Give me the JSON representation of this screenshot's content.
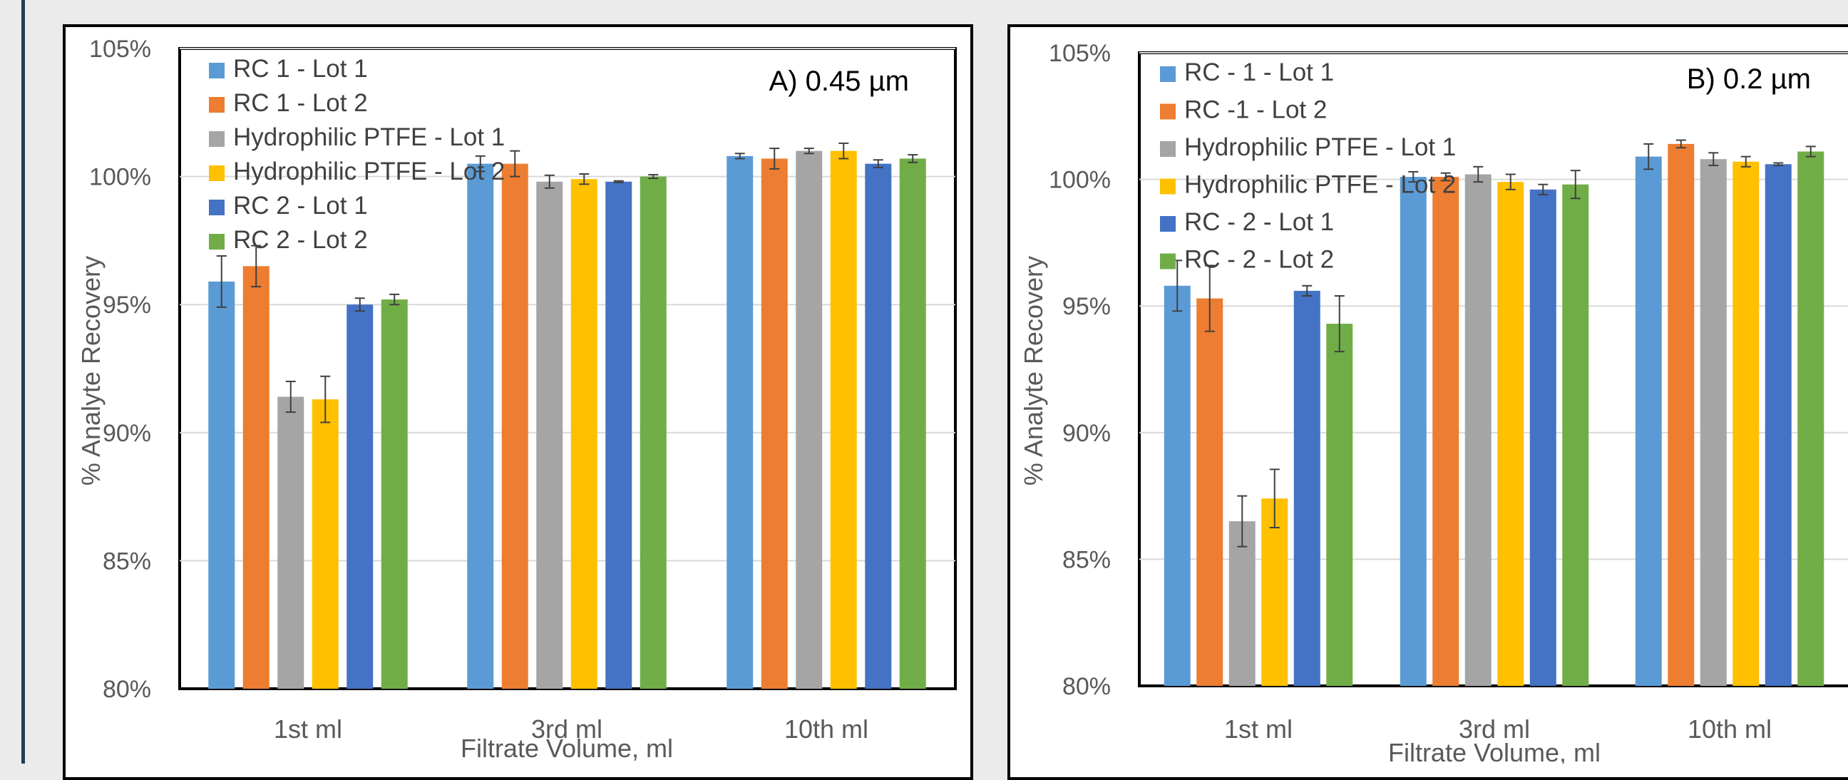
{
  "chart_data": [
    {
      "type": "bar",
      "title": "A) 0.45 µm",
      "xlabel": "Filtrate Volume, ml",
      "ylabel": "% Analyte Recovery",
      "ylim": [
        80,
        105
      ],
      "yticks": [
        "80%",
        "85%",
        "90%",
        "95%",
        "100%",
        "105%"
      ],
      "categories": [
        "1st ml",
        "3rd ml",
        "10th ml"
      ],
      "grid": true,
      "legend_position": "top-left",
      "series": [
        {
          "name": "RC 1 - Lot 1",
          "color": "#5b9bd5",
          "values": [
            95.9,
            100.5,
            100.8
          ],
          "errors": [
            1.0,
            0.3,
            0.1
          ]
        },
        {
          "name": "RC 1 - Lot 2",
          "color": "#ed7d31",
          "values": [
            96.5,
            100.5,
            100.7
          ],
          "errors": [
            0.8,
            0.5,
            0.4
          ]
        },
        {
          "name": "Hydrophilic PTFE - Lot 1",
          "color": "#a5a5a5",
          "values": [
            91.4,
            99.8,
            101.0
          ],
          "errors": [
            0.6,
            0.25,
            0.1
          ]
        },
        {
          "name": "Hydrophilic PTFE - Lot 2",
          "color": "#ffc000",
          "values": [
            91.3,
            99.9,
            101.0
          ],
          "errors": [
            0.9,
            0.2,
            0.3
          ]
        },
        {
          "name": "RC 2 - Lot 1",
          "color": "#4472c4",
          "values": [
            95.0,
            99.8,
            100.5
          ],
          "errors": [
            0.25,
            0.03,
            0.15
          ]
        },
        {
          "name": "RC 2 - Lot 2",
          "color": "#70ad47",
          "values": [
            95.2,
            100.0,
            100.7
          ],
          "errors": [
            0.2,
            0.07,
            0.15
          ]
        }
      ]
    },
    {
      "type": "bar",
      "title": "B) 0.2 µm",
      "xlabel": "Filtrate Volume, ml",
      "ylabel": "% Analyte Recovery",
      "ylim": [
        80,
        105
      ],
      "yticks": [
        "80%",
        "85%",
        "90%",
        "95%",
        "100%",
        "105%"
      ],
      "categories": [
        "1st ml",
        "3rd ml",
        "10th ml"
      ],
      "grid": true,
      "legend_position": "top-left",
      "series": [
        {
          "name": "RC - 1 - Lot 1",
          "color": "#5b9bd5",
          "values": [
            95.8,
            100.1,
            100.9
          ],
          "errors": [
            1.0,
            0.2,
            0.5
          ]
        },
        {
          "name": "RC -1 - Lot 2",
          "color": "#ed7d31",
          "values": [
            95.3,
            100.1,
            101.4
          ],
          "errors": [
            1.3,
            0.15,
            0.15
          ]
        },
        {
          "name": "Hydrophilic PTFE - Lot 1",
          "color": "#a5a5a5",
          "values": [
            86.5,
            100.2,
            100.8
          ],
          "errors": [
            1.0,
            0.3,
            0.25
          ]
        },
        {
          "name": "Hydrophilic PTFE - Lot 2",
          "color": "#ffc000",
          "values": [
            87.4,
            99.9,
            100.7
          ],
          "errors": [
            1.15,
            0.3,
            0.2
          ]
        },
        {
          "name": "RC - 2 - Lot 1",
          "color": "#4472c4",
          "values": [
            95.6,
            99.6,
            100.6
          ],
          "errors": [
            0.2,
            0.2,
            0.05
          ]
        },
        {
          "name": "RC - 2 - Lot 2",
          "color": "#70ad47",
          "values": [
            94.3,
            99.8,
            101.1
          ],
          "errors": [
            1.1,
            0.55,
            0.2
          ]
        }
      ]
    }
  ]
}
